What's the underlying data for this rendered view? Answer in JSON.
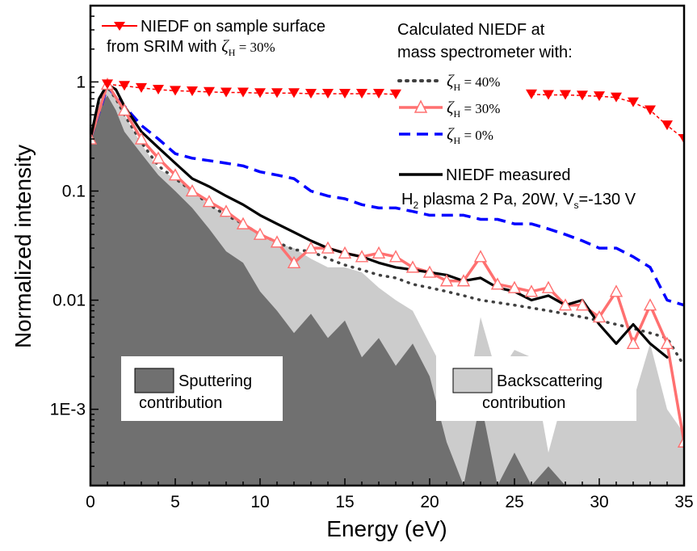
{
  "chart_data": {
    "type": "line",
    "xlabel": "Energy (eV)",
    "ylabel": "Normalized intensity",
    "xlim": [
      0,
      35
    ],
    "ylim": [
      0.0002,
      5
    ],
    "yscale": "log",
    "x_ticks": [
      {
        "value": 0,
        "label": "0"
      },
      {
        "value": 5,
        "label": "5"
      },
      {
        "value": 10,
        "label": "10"
      },
      {
        "value": 15,
        "label": "15"
      },
      {
        "value": 20,
        "label": "20"
      },
      {
        "value": 25,
        "label": "25"
      },
      {
        "value": 30,
        "label": "30"
      },
      {
        "value": 35,
        "label": "35"
      }
    ],
    "y_ticks": [
      {
        "value": 0.001,
        "label": "1E-3"
      },
      {
        "value": 0.01,
        "label": "0.01"
      },
      {
        "value": 0.1,
        "label": "0.1"
      },
      {
        "value": 1,
        "label": "1"
      }
    ],
    "areas": [
      {
        "key": "backscattering",
        "color": "#cccccc",
        "x": [
          0,
          0.5,
          1,
          1.5,
          2,
          3,
          4,
          5,
          6,
          7,
          8,
          9,
          10,
          11,
          12,
          13,
          14,
          15,
          16,
          17,
          18,
          19,
          20,
          21,
          22,
          23,
          24,
          25,
          26,
          27,
          28,
          29,
          30,
          31,
          32,
          33,
          34,
          35
        ],
        "y": [
          0.3,
          0.65,
          0.9,
          0.7,
          0.5,
          0.27,
          0.16,
          0.13,
          0.1,
          0.075,
          0.06,
          0.05,
          0.04,
          0.033,
          0.03,
          0.024,
          0.02,
          0.02,
          0.018,
          0.013,
          0.01,
          0.008,
          0.004,
          0.002,
          0.0008,
          0.007,
          0.002,
          0.0035,
          0.003,
          0.0004,
          0.0015,
          0.0025,
          0.003,
          0.0015,
          0.0012,
          0.004,
          0.001,
          0.0006
        ]
      },
      {
        "key": "sputtering",
        "color": "#707070",
        "x": [
          0,
          0.5,
          1,
          1.5,
          2,
          3,
          4,
          5,
          6,
          7,
          8,
          9,
          10,
          11,
          12,
          13,
          14,
          15,
          16,
          17,
          18,
          19,
          20,
          20.5,
          21,
          22,
          23,
          24,
          25,
          26,
          27,
          28
        ],
        "y": [
          0.28,
          0.6,
          0.75,
          0.55,
          0.35,
          0.22,
          0.14,
          0.1,
          0.07,
          0.045,
          0.028,
          0.022,
          0.012,
          0.008,
          0.005,
          0.0075,
          0.0045,
          0.0065,
          0.003,
          0.0045,
          0.0025,
          0.004,
          0.002,
          0.001,
          0.0005,
          0.0002,
          0.0012,
          0.0002,
          0.0004,
          0.0002,
          0.0003,
          0.0002
        ]
      }
    ],
    "series": [
      {
        "key": "srim",
        "color": "#ff0000",
        "x": [
          1,
          2,
          3,
          4,
          5,
          6,
          7,
          8,
          9,
          10,
          11,
          12,
          13,
          14,
          15,
          16,
          17,
          18,
          26,
          27,
          28,
          29,
          30,
          31,
          32,
          33,
          34,
          35
        ],
        "y": [
          0.95,
          0.92,
          0.88,
          0.85,
          0.83,
          0.82,
          0.81,
          0.8,
          0.8,
          0.79,
          0.79,
          0.79,
          0.78,
          0.78,
          0.78,
          0.78,
          0.78,
          0.77,
          0.77,
          0.76,
          0.76,
          0.75,
          0.74,
          0.72,
          0.65,
          0.55,
          0.4,
          0.3
        ]
      },
      {
        "key": "zeta40",
        "color": "#404040",
        "x": [
          0,
          0.5,
          1,
          1.5,
          2,
          3,
          4,
          5,
          6,
          7,
          8,
          9,
          10,
          11,
          12,
          13,
          14,
          15,
          16,
          17,
          18,
          19,
          20,
          21,
          22,
          23,
          24,
          25,
          26,
          27,
          28,
          29,
          30,
          31,
          32,
          33,
          34,
          35
        ],
        "y": [
          0.3,
          0.68,
          0.9,
          0.7,
          0.5,
          0.28,
          0.17,
          0.13,
          0.1,
          0.075,
          0.06,
          0.05,
          0.04,
          0.034,
          0.029,
          0.028,
          0.024,
          0.021,
          0.019,
          0.017,
          0.016,
          0.014,
          0.013,
          0.012,
          0.011,
          0.01,
          0.0095,
          0.009,
          0.0085,
          0.008,
          0.0075,
          0.007,
          0.0065,
          0.006,
          0.0055,
          0.005,
          0.0045,
          0.0025
        ]
      },
      {
        "key": "zeta30",
        "color": "#ff7070",
        "x": [
          0,
          1,
          2,
          3,
          4,
          5,
          6,
          7,
          8,
          9,
          10,
          11,
          12,
          13,
          14,
          15,
          16,
          17,
          18,
          19,
          20,
          21,
          22,
          23,
          24,
          25,
          26,
          27,
          28,
          29,
          30,
          31,
          32,
          33,
          34,
          35
        ],
        "y": [
          0.3,
          0.95,
          0.55,
          0.3,
          0.2,
          0.14,
          0.1,
          0.08,
          0.065,
          0.05,
          0.04,
          0.034,
          0.022,
          0.03,
          0.03,
          0.027,
          0.025,
          0.027,
          0.025,
          0.02,
          0.018,
          0.015,
          0.015,
          0.025,
          0.014,
          0.013,
          0.012,
          0.013,
          0.009,
          0.009,
          0.007,
          0.012,
          0.004,
          0.009,
          0.004,
          0.0005
        ]
      },
      {
        "key": "zeta0",
        "color": "#0000ff",
        "x": [
          0,
          1,
          2,
          3,
          4,
          5,
          6,
          7,
          8,
          9,
          10,
          11,
          12,
          13,
          14,
          15,
          16,
          17,
          18,
          19,
          20,
          21,
          22,
          23,
          24,
          25,
          26,
          27,
          28,
          29,
          30,
          31,
          32,
          33,
          34,
          35
        ],
        "y": [
          0.3,
          0.9,
          0.6,
          0.4,
          0.3,
          0.22,
          0.2,
          0.19,
          0.18,
          0.17,
          0.15,
          0.14,
          0.13,
          0.1,
          0.09,
          0.085,
          0.075,
          0.07,
          0.07,
          0.065,
          0.06,
          0.06,
          0.06,
          0.055,
          0.055,
          0.05,
          0.05,
          0.045,
          0.04,
          0.035,
          0.03,
          0.03,
          0.025,
          0.02,
          0.01,
          0.009
        ]
      },
      {
        "key": "measured",
        "color": "#000000",
        "x": [
          0,
          0.5,
          1,
          1.5,
          2,
          3,
          4,
          5,
          6,
          7,
          8,
          9,
          10,
          11,
          12,
          13,
          14,
          15,
          16,
          17,
          18,
          19,
          20,
          21,
          22,
          23,
          24,
          25,
          26,
          27,
          28,
          29,
          30,
          31,
          32,
          33,
          34
        ],
        "y": [
          0.3,
          0.7,
          0.95,
          0.85,
          0.6,
          0.35,
          0.25,
          0.18,
          0.13,
          0.11,
          0.09,
          0.075,
          0.06,
          0.05,
          0.042,
          0.035,
          0.03,
          0.027,
          0.025,
          0.022,
          0.02,
          0.019,
          0.018,
          0.017,
          0.015,
          0.016,
          0.013,
          0.012,
          0.01,
          0.011,
          0.009,
          0.01,
          0.006,
          0.004,
          0.006,
          0.004,
          0.003
        ]
      }
    ],
    "legend": {
      "srim_line1": "NIEDF on sample surface",
      "srim_line2": "from SRIM with ",
      "calc_line1": "Calculated NIEDF at",
      "calc_line2": "mass spectrometer with:",
      "zeta_symbol": "ζ",
      "zeta_sub": "H",
      "zeta40_value": " = 40%",
      "zeta30_value": " = 30%",
      "zeta0_value": " = 0%",
      "srim_value": " = 30%",
      "measured_line1": "NIEDF measured",
      "measured_line2_a": "H",
      "measured_line2_sub": "2",
      "measured_line2_b": " plasma 2 Pa, 20W, V",
      "measured_line2_sub2": "s",
      "measured_line2_c": "=-130 V"
    },
    "annotations": {
      "sputtering_line1": "Sputtering",
      "sputtering_line2": "contribution",
      "backscattering_line1": "Backscattering",
      "backscattering_line2": "contribution"
    }
  }
}
